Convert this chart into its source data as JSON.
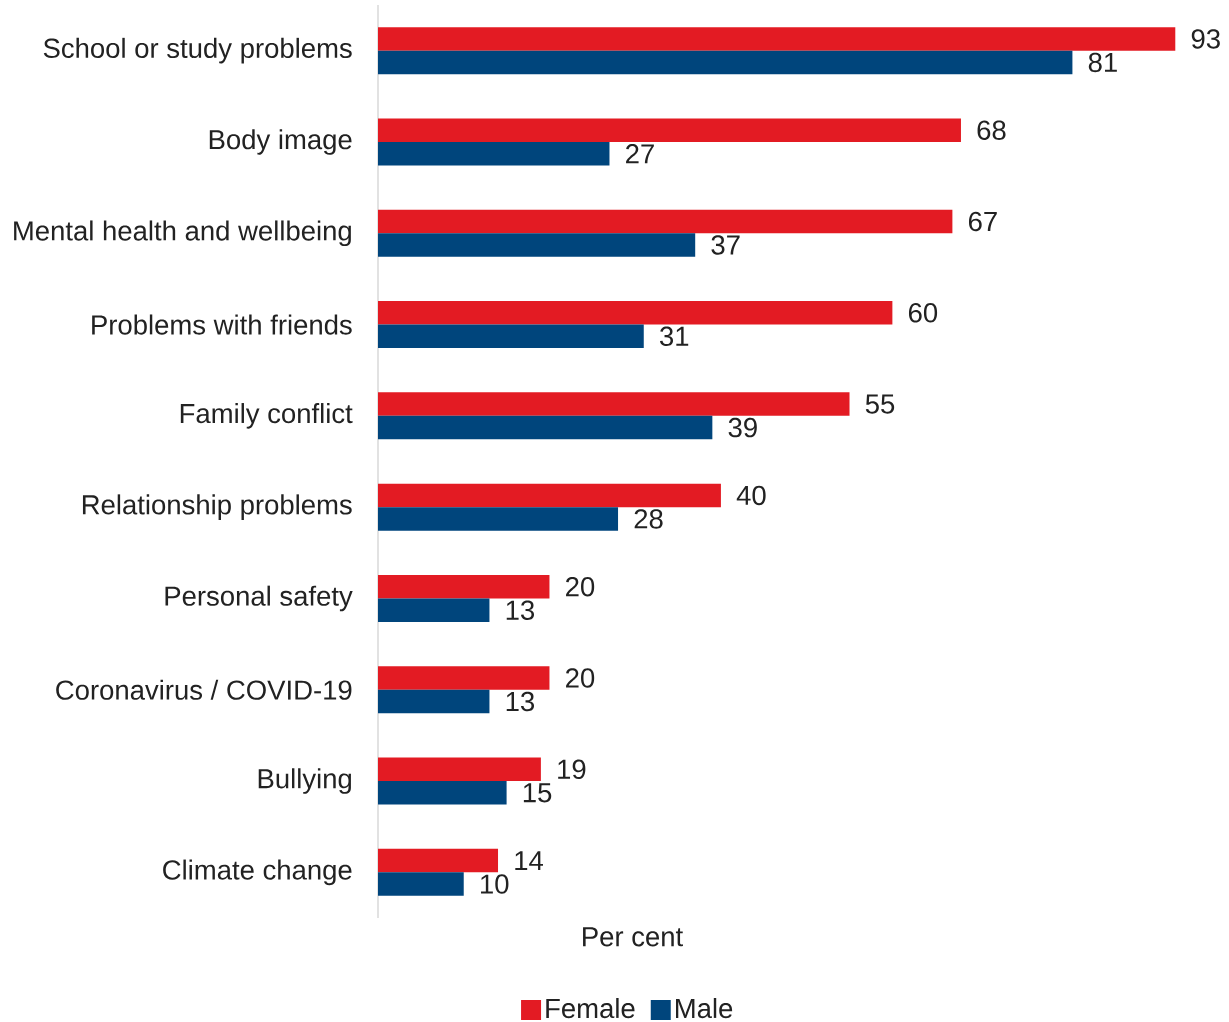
{
  "chart_data": {
    "type": "bar",
    "orientation": "horizontal",
    "xlabel": "Per cent",
    "categories": [
      "School or study problems",
      "Body image",
      "Mental health and wellbeing",
      "Problems with friends",
      "Family conflict",
      "Relationship problems",
      "Personal safety",
      "Coronavirus / COVID-19",
      "Bullying",
      "Climate change"
    ],
    "series": [
      {
        "name": "Female",
        "color": "#e31b23",
        "values": [
          93,
          68,
          67,
          60,
          55,
          40,
          20,
          20,
          19,
          14
        ]
      },
      {
        "name": "Male",
        "color": "#00457c",
        "values": [
          81,
          27,
          37,
          31,
          39,
          28,
          13,
          13,
          15,
          10
        ]
      }
    ],
    "data_labels": true,
    "legend": "bottom"
  }
}
